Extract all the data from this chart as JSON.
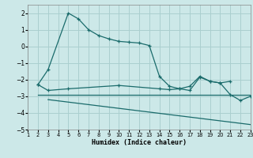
{
  "xlabel": "Humidex (Indice chaleur)",
  "xlim": [
    1,
    23
  ],
  "ylim": [
    -5,
    2.5
  ],
  "yticks": [
    -5,
    -4,
    -3,
    -2,
    -1,
    0,
    1,
    2
  ],
  "xticks": [
    1,
    2,
    3,
    4,
    5,
    6,
    7,
    8,
    9,
    10,
    11,
    12,
    13,
    14,
    15,
    16,
    17,
    18,
    19,
    20,
    21,
    22,
    23
  ],
  "bg_color": "#cce8e8",
  "line_color": "#1a6b6b",
  "grid_color": "#aacfcf",
  "line1_x": [
    2,
    3,
    5,
    6,
    7,
    8,
    9,
    10,
    11,
    12,
    13,
    14,
    15,
    16,
    17,
    18,
    19,
    20,
    21
  ],
  "line1_y": [
    -2.3,
    -1.4,
    2.0,
    1.65,
    1.0,
    0.65,
    0.45,
    0.3,
    0.25,
    0.2,
    0.05,
    -1.8,
    -2.4,
    -2.55,
    -2.4,
    -1.8,
    -2.1,
    -2.2,
    -2.1
  ],
  "line2_x": [
    2,
    3,
    5,
    10,
    14,
    15,
    16,
    17,
    18,
    19,
    20,
    21,
    22,
    23
  ],
  "line2_y": [
    -2.3,
    -2.65,
    -2.55,
    -2.35,
    -2.55,
    -2.6,
    -2.55,
    -2.65,
    -1.85,
    -2.1,
    -2.2,
    -2.9,
    -3.25,
    -3.0
  ],
  "line3_x": [
    2,
    23
  ],
  "line3_y": [
    -2.9,
    -2.9
  ],
  "line4_x": [
    3,
    23
  ],
  "line4_y": [
    -3.2,
    -4.7
  ],
  "line1_markers": [
    2,
    3,
    5,
    6,
    7,
    8,
    9,
    10,
    11,
    12,
    13,
    14,
    15,
    16,
    17,
    18,
    19,
    20,
    21
  ],
  "line2_markers": [
    2,
    14,
    15,
    16,
    17,
    18,
    19,
    20,
    21,
    22,
    23
  ]
}
